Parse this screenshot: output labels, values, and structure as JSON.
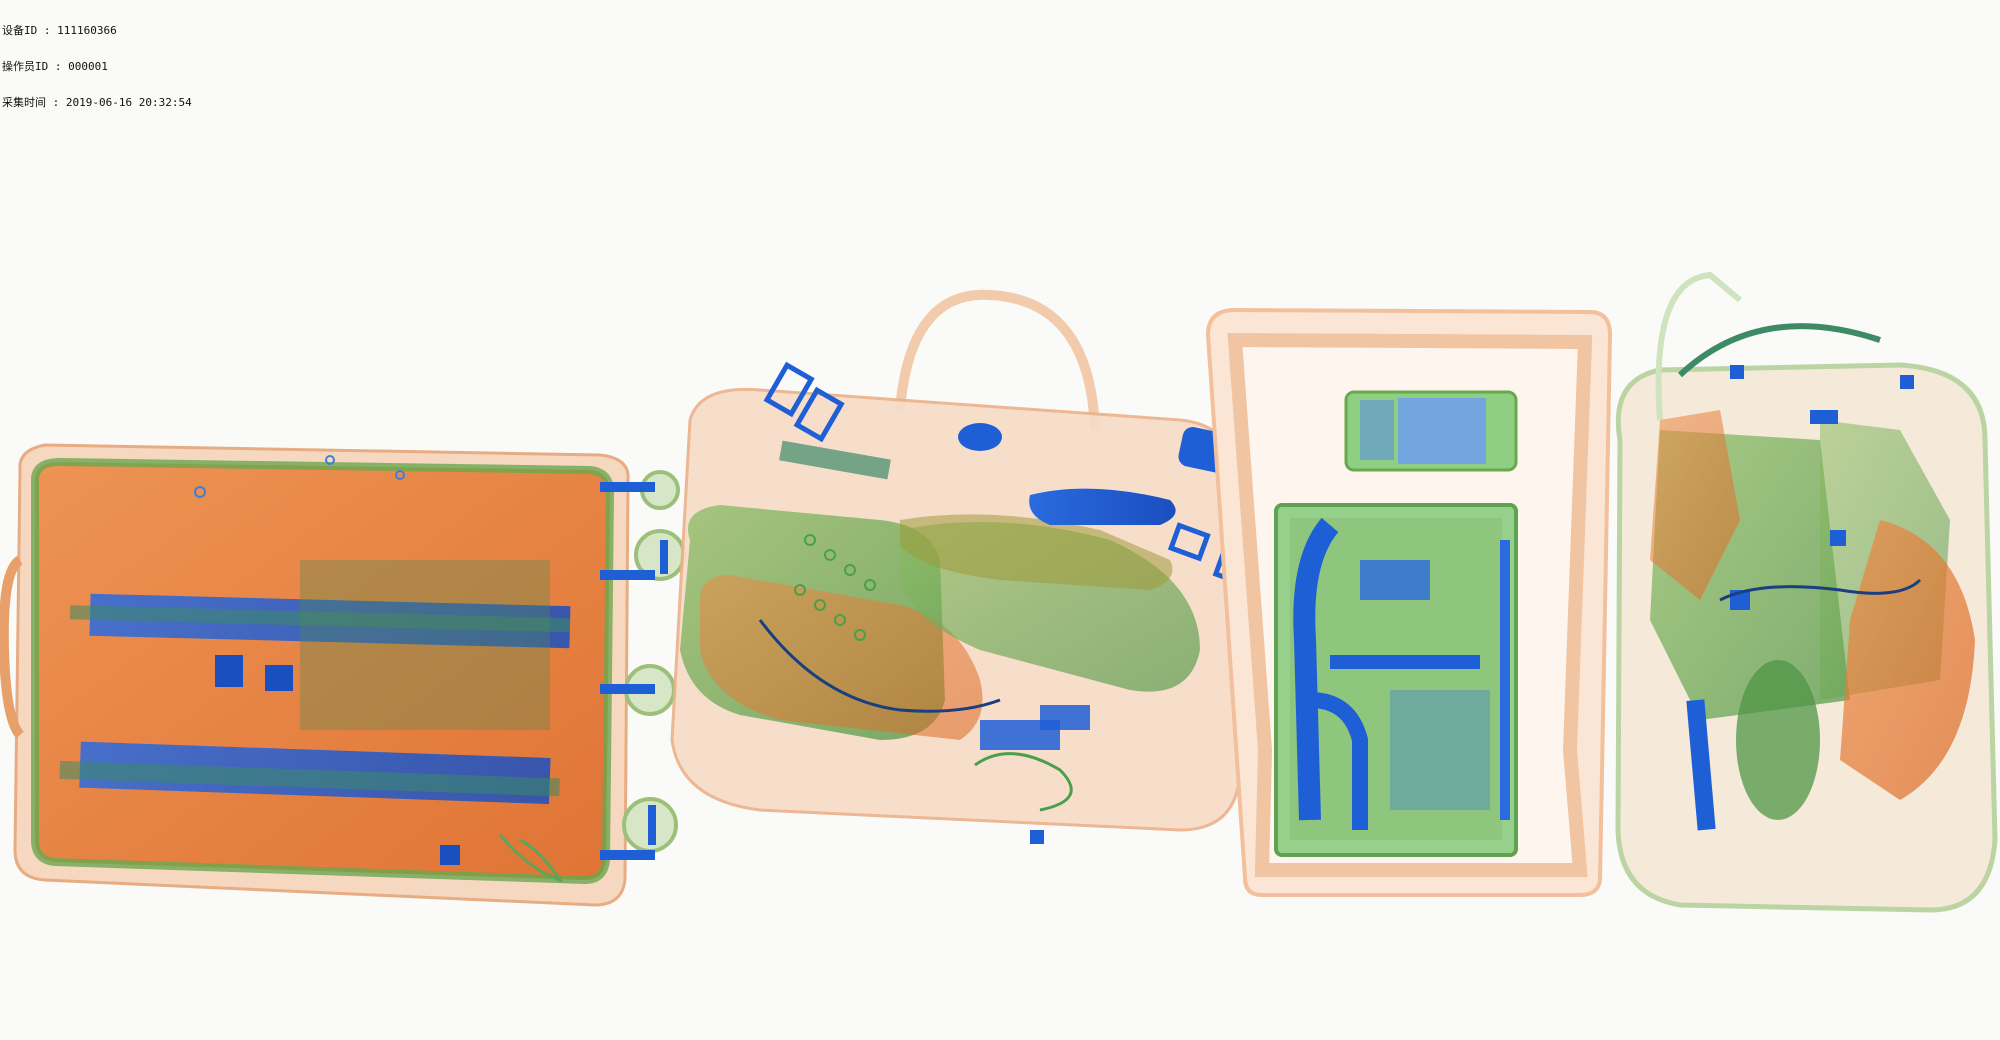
{
  "scan_info": {
    "device_label": "设备ID",
    "device_id": "111160366",
    "operator_label": "操作员ID",
    "operator_id": "000001",
    "time_label": "采集时间",
    "timestamp": "2019-06-16 20:32:54",
    "separator": " : "
  },
  "palette": {
    "background": "#fafaf8",
    "organic_orange": "#e8732a",
    "mixed_green": "#6aa84f",
    "metal_blue": "#1f5fd6",
    "light_orange": "#f4c29a"
  },
  "objects": [
    {
      "name": "suitcase",
      "icon": "suitcase-icon"
    },
    {
      "name": "handbag",
      "icon": "handbag-icon"
    },
    {
      "name": "tray-with-laptop-and-phone",
      "icon": "tray-icon"
    },
    {
      "name": "backpack",
      "icon": "backpack-icon"
    }
  ]
}
